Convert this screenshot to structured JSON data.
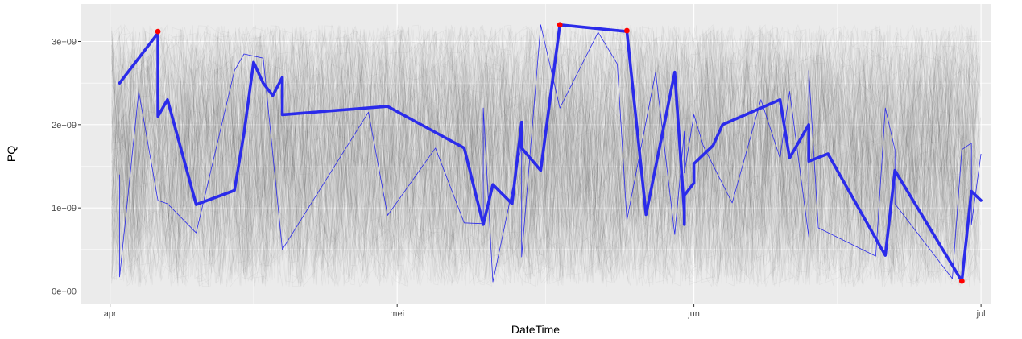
{
  "chart_data": {
    "type": "line",
    "title": "",
    "xlabel": "DateTime",
    "ylabel": "PQ",
    "x_ticks": [
      {
        "date": "2021-04-01",
        "label": "apr"
      },
      {
        "date": "2021-05-01",
        "label": "mei"
      },
      {
        "date": "2021-06-01",
        "label": "jun"
      },
      {
        "date": "2021-07-01",
        "label": "jul"
      }
    ],
    "y_ticks": [
      {
        "value": 0,
        "label": "0e+00"
      },
      {
        "value": 1000000000,
        "label": "1e+09"
      },
      {
        "value": 2000000000,
        "label": "2e+09"
      },
      {
        "value": 3000000000,
        "label": "3e+09"
      }
    ],
    "xlim": [
      "2021-03-29",
      "2021-07-02"
    ],
    "ylim": [
      -150000000,
      3450000000
    ],
    "grid": true,
    "background_color": "#ebebeb",
    "highlight_color": "#2b2bea",
    "marker_color": "#ff0000",
    "background_color_lines": "#000000",
    "series": [
      {
        "role": "highlight",
        "points": [
          [
            "2021-04-02",
            2500000000
          ],
          [
            "2021-04-06",
            3100000000
          ],
          [
            "2021-04-06",
            2100000000
          ],
          [
            "2021-04-07",
            2300000000
          ],
          [
            "2021-04-10",
            1040000000
          ],
          [
            "2021-04-14",
            1210000000
          ],
          [
            "2021-04-15",
            1900000000
          ],
          [
            "2021-04-16",
            2750000000
          ],
          [
            "2021-04-17",
            2500000000
          ],
          [
            "2021-04-18",
            2350000000
          ],
          [
            "2021-04-19",
            2570000000
          ],
          [
            "2021-04-19",
            2120000000
          ],
          [
            "2021-04-30",
            2220000000
          ],
          [
            "2021-05-08",
            1720000000
          ],
          [
            "2021-05-10",
            800000000
          ],
          [
            "2021-05-11",
            1280000000
          ],
          [
            "2021-05-13",
            1050000000
          ],
          [
            "2021-05-14",
            2030000000
          ],
          [
            "2021-05-14",
            1720000000
          ],
          [
            "2021-05-16",
            1450000000
          ],
          [
            "2021-05-18",
            3200000000
          ],
          [
            "2021-05-25",
            3120000000
          ],
          [
            "2021-05-27",
            920000000
          ],
          [
            "2021-05-30",
            2630000000
          ],
          [
            "2021-05-31",
            950000000
          ],
          [
            "2021-05-31",
            800000000
          ],
          [
            "2021-05-31",
            1150000000
          ],
          [
            "2021-06-01",
            1300000000
          ],
          [
            "2021-06-01",
            1530000000
          ],
          [
            "2021-06-03",
            1750000000
          ],
          [
            "2021-06-04",
            2000000000
          ],
          [
            "2021-06-10",
            2300000000
          ],
          [
            "2021-06-11",
            1600000000
          ],
          [
            "2021-06-13",
            2000000000
          ],
          [
            "2021-06-13",
            1560000000
          ],
          [
            "2021-06-15",
            1650000000
          ],
          [
            "2021-06-21",
            430000000
          ],
          [
            "2021-06-22",
            1450000000
          ],
          [
            "2021-06-29",
            120000000
          ],
          [
            "2021-06-30",
            1200000000
          ],
          [
            "2021-06-31",
            1090000000
          ]
        ]
      },
      {
        "role": "thin",
        "points": [
          [
            "2021-04-02",
            1400000000
          ],
          [
            "2021-04-02",
            170000000
          ],
          [
            "2021-04-04",
            2400000000
          ],
          [
            "2021-04-06",
            1090000000
          ],
          [
            "2021-04-07",
            1050000000
          ],
          [
            "2021-04-10",
            700000000
          ],
          [
            "2021-04-14",
            2650000000
          ],
          [
            "2021-04-15",
            2850000000
          ],
          [
            "2021-04-17",
            2800000000
          ],
          [
            "2021-04-19",
            500000000
          ],
          [
            "2021-04-28",
            2150000000
          ],
          [
            "2021-04-30",
            910000000
          ],
          [
            "2021-05-05",
            1720000000
          ],
          [
            "2021-05-08",
            820000000
          ],
          [
            "2021-05-10",
            810000000
          ],
          [
            "2021-05-10",
            2200000000
          ],
          [
            "2021-05-11",
            110000000
          ],
          [
            "2021-05-14",
            1750000000
          ],
          [
            "2021-05-14",
            410000000
          ],
          [
            "2021-05-16",
            3200000000
          ],
          [
            "2021-05-18",
            2200000000
          ],
          [
            "2021-05-22",
            3110000000
          ],
          [
            "2021-05-24",
            2730000000
          ],
          [
            "2021-05-25",
            850000000
          ],
          [
            "2021-05-28",
            2630000000
          ],
          [
            "2021-05-30",
            680000000
          ],
          [
            "2021-05-31",
            1920000000
          ],
          [
            "2021-05-31",
            1420000000
          ],
          [
            "2021-06-01",
            2120000000
          ],
          [
            "2021-06-02",
            1740000000
          ],
          [
            "2021-06-05",
            1060000000
          ],
          [
            "2021-06-08",
            2300000000
          ],
          [
            "2021-06-10",
            1600000000
          ],
          [
            "2021-06-11",
            2400000000
          ],
          [
            "2021-06-13",
            650000000
          ],
          [
            "2021-06-13",
            2650000000
          ],
          [
            "2021-06-14",
            760000000
          ],
          [
            "2021-06-20",
            420000000
          ],
          [
            "2021-06-21",
            2200000000
          ],
          [
            "2021-06-22",
            1700000000
          ],
          [
            "2021-06-22",
            1050000000
          ],
          [
            "2021-06-28",
            150000000
          ],
          [
            "2021-06-29",
            1700000000
          ],
          [
            "2021-06-30",
            1780000000
          ],
          [
            "2021-06-30",
            800000000
          ],
          [
            "2021-06-31",
            1650000000
          ]
        ]
      }
    ],
    "markers": [
      [
        "2021-04-06",
        3120000000
      ],
      [
        "2021-05-18",
        3200000000
      ],
      [
        "2021-05-25",
        3130000000
      ],
      [
        "2021-06-29",
        120000000
      ]
    ]
  }
}
